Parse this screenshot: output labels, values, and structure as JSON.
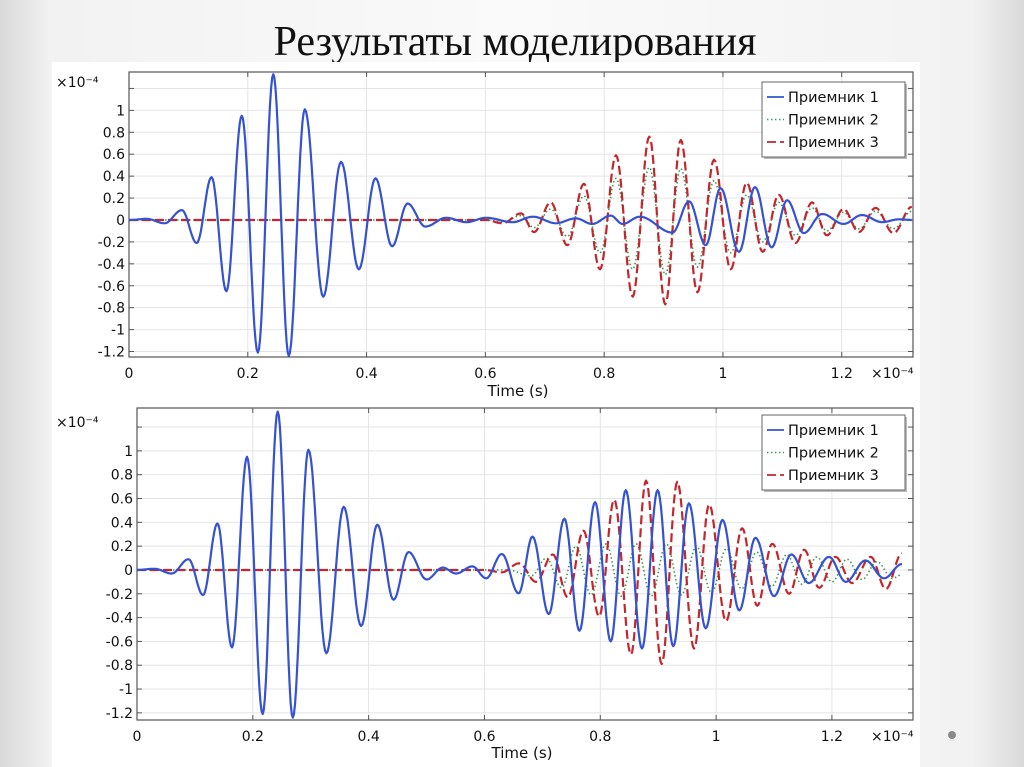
{
  "slide": {
    "title": "Результаты моделирования"
  },
  "colors": {
    "series1": "#3452d1",
    "series2": "#3f9a55",
    "series3": "#c3262c",
    "grid": "#e4e4e4"
  },
  "chart_data": [
    {
      "type": "line",
      "title": "",
      "xlabel": "Time (s)",
      "ylabel": "",
      "x_multiplier": "×10⁻⁴",
      "y_multiplier": "×10⁻⁴",
      "xlim": [
        0,
        1.32
      ],
      "ylim": [
        -1.25,
        1.35
      ],
      "x_ticks": [
        "0",
        "0.2",
        "0.4",
        "0.6",
        "0.8",
        "1",
        "1.2"
      ],
      "y_ticks": [
        "-1.2",
        "-1",
        "-0.8",
        "-0.6",
        "-0.4",
        "-0.2",
        "0",
        "0.2",
        "0.4",
        "0.6",
        "0.8",
        "1"
      ],
      "grid": true,
      "legend_position": "top-right",
      "series": [
        {
          "name": "Приемник 1",
          "style": "solid",
          "points": [
            [
              0,
              0
            ],
            [
              0.03,
              0.01
            ],
            [
              0.06,
              -0.03
            ],
            [
              0.089,
              0.09
            ],
            [
              0.114,
              -0.21
            ],
            [
              0.139,
              0.39
            ],
            [
              0.164,
              -0.65
            ],
            [
              0.19,
              0.95
            ],
            [
              0.217,
              -1.21
            ],
            [
              0.243,
              1.33
            ],
            [
              0.269,
              -1.24
            ],
            [
              0.296,
              1.01
            ],
            [
              0.327,
              -0.7
            ],
            [
              0.357,
              0.53
            ],
            [
              0.387,
              -0.45
            ],
            [
              0.415,
              0.38
            ],
            [
              0.443,
              -0.24
            ],
            [
              0.469,
              0.15
            ],
            [
              0.499,
              -0.06
            ],
            [
              0.534,
              0.02
            ],
            [
              0.568,
              -0.02
            ],
            [
              0.601,
              0.02
            ],
            [
              0.646,
              -0.02
            ],
            [
              0.68,
              0.03
            ],
            [
              0.719,
              -0.03
            ],
            [
              0.752,
              0.015
            ],
            [
              0.78,
              -0.036
            ],
            [
              0.811,
              0.04
            ],
            [
              0.831,
              -0.036
            ],
            [
              0.86,
              0.03
            ],
            [
              0.915,
              -0.115
            ],
            [
              0.943,
              0.17
            ],
            [
              0.971,
              -0.23
            ],
            [
              0.996,
              0.29
            ],
            [
              1.027,
              -0.29
            ],
            [
              1.054,
              0.3
            ],
            [
              1.082,
              -0.25
            ],
            [
              1.108,
              0.18
            ],
            [
              1.136,
              -0.12
            ],
            [
              1.167,
              0.055
            ],
            [
              1.203,
              -0.036
            ],
            [
              1.234,
              0.045
            ],
            [
              1.268,
              -0.02
            ],
            [
              1.296,
              0.006
            ],
            [
              1.318,
              0
            ]
          ]
        },
        {
          "name": "Приемник 2",
          "style": "dotted",
          "points": [
            [
              0,
              0
            ],
            [
              0.6,
              0
            ],
            [
              0.629,
              -0.02
            ],
            [
              0.66,
              0.04
            ],
            [
              0.682,
              -0.07
            ],
            [
              0.71,
              0.1
            ],
            [
              0.738,
              -0.15
            ],
            [
              0.766,
              0.22
            ],
            [
              0.793,
              -0.3
            ],
            [
              0.82,
              0.38
            ],
            [
              0.848,
              -0.45
            ],
            [
              0.876,
              0.48
            ],
            [
              0.903,
              -0.5
            ],
            [
              0.929,
              0.47
            ],
            [
              0.957,
              -0.43
            ],
            [
              0.985,
              0.36
            ],
            [
              1.013,
              -0.3
            ],
            [
              1.04,
              0.23
            ],
            [
              1.067,
              -0.2
            ],
            [
              1.094,
              0.16
            ],
            [
              1.122,
              -0.14
            ],
            [
              1.15,
              0.11
            ],
            [
              1.175,
              -0.1
            ],
            [
              1.203,
              0.07
            ],
            [
              1.229,
              -0.08
            ],
            [
              1.257,
              0.08
            ],
            [
              1.287,
              -0.08
            ],
            [
              1.318,
              0.08
            ]
          ]
        },
        {
          "name": "Приемник 3",
          "style": "dashed",
          "points": [
            [
              0,
              0
            ],
            [
              0.6,
              0
            ],
            [
              0.629,
              -0.03
            ],
            [
              0.66,
              0.06
            ],
            [
              0.682,
              -0.11
            ],
            [
              0.71,
              0.16
            ],
            [
              0.738,
              -0.23
            ],
            [
              0.766,
              0.33
            ],
            [
              0.793,
              -0.45
            ],
            [
              0.82,
              0.59
            ],
            [
              0.848,
              -0.7
            ],
            [
              0.876,
              0.76
            ],
            [
              0.903,
              -0.77
            ],
            [
              0.929,
              0.73
            ],
            [
              0.957,
              -0.66
            ],
            [
              0.985,
              0.55
            ],
            [
              1.013,
              -0.45
            ],
            [
              1.04,
              0.34
            ],
            [
              1.067,
              -0.29
            ],
            [
              1.094,
              0.23
            ],
            [
              1.122,
              -0.21
            ],
            [
              1.15,
              0.16
            ],
            [
              1.175,
              -0.14
            ],
            [
              1.203,
              0.1
            ],
            [
              1.229,
              -0.11
            ],
            [
              1.257,
              0.11
            ],
            [
              1.287,
              -0.12
            ],
            [
              1.318,
              0.12
            ]
          ]
        }
      ]
    },
    {
      "type": "line",
      "title": "",
      "xlabel": "Time (s)",
      "ylabel": "",
      "x_multiplier": "×10⁻⁴",
      "y_multiplier": "×10⁻⁴",
      "xlim": [
        0,
        1.34
      ],
      "ylim": [
        -1.26,
        1.36
      ],
      "x_ticks": [
        "0",
        "0.2",
        "0.4",
        "0.6",
        "0.8",
        "1",
        "1.2"
      ],
      "y_ticks": [
        "-1.2",
        "-1",
        "-0.8",
        "-0.6",
        "-0.4",
        "-0.2",
        "0",
        "0.2",
        "0.4",
        "0.6",
        "0.8",
        "1"
      ],
      "grid": true,
      "legend_position": "top-right",
      "series": [
        {
          "name": "Приемник 1",
          "style": "solid",
          "points": [
            [
              0,
              0
            ],
            [
              0.03,
              0.01
            ],
            [
              0.06,
              -0.03
            ],
            [
              0.089,
              0.09
            ],
            [
              0.114,
              -0.21
            ],
            [
              0.139,
              0.39
            ],
            [
              0.164,
              -0.65
            ],
            [
              0.19,
              0.95
            ],
            [
              0.217,
              -1.21
            ],
            [
              0.243,
              1.33
            ],
            [
              0.269,
              -1.24
            ],
            [
              0.296,
              1.01
            ],
            [
              0.327,
              -0.7
            ],
            [
              0.357,
              0.53
            ],
            [
              0.387,
              -0.47
            ],
            [
              0.415,
              0.38
            ],
            [
              0.443,
              -0.25
            ],
            [
              0.469,
              0.15
            ],
            [
              0.5,
              -0.08
            ],
            [
              0.528,
              0.02
            ],
            [
              0.551,
              -0.03
            ],
            [
              0.579,
              0.03
            ],
            [
              0.603,
              -0.07
            ],
            [
              0.63,
              0.134
            ],
            [
              0.659,
              -0.196
            ],
            [
              0.683,
              0.28
            ],
            [
              0.711,
              -0.37
            ],
            [
              0.738,
              0.43
            ],
            [
              0.764,
              -0.51
            ],
            [
              0.791,
              0.57
            ],
            [
              0.818,
              -0.6
            ],
            [
              0.844,
              0.67
            ],
            [
              0.872,
              -0.66
            ],
            [
              0.899,
              0.67
            ],
            [
              0.926,
              -0.64
            ],
            [
              0.953,
              0.56
            ],
            [
              0.982,
              -0.49
            ],
            [
              1.011,
              0.42
            ],
            [
              1.04,
              -0.34
            ],
            [
              1.068,
              0.27
            ],
            [
              1.1,
              -0.22
            ],
            [
              1.13,
              0.13
            ],
            [
              1.16,
              -0.11
            ],
            [
              1.195,
              0.11
            ],
            [
              1.224,
              -0.1
            ],
            [
              1.258,
              0.08
            ],
            [
              1.29,
              -0.07
            ],
            [
              1.321,
              0.05
            ]
          ]
        },
        {
          "name": "Приемник 2",
          "style": "dotted",
          "points": [
            [
              0,
              0
            ],
            [
              0.64,
              0
            ],
            [
              0.681,
              -0.05
            ],
            [
              0.707,
              0.1
            ],
            [
              0.733,
              -0.15
            ],
            [
              0.758,
              0.2
            ],
            [
              0.784,
              -0.21
            ],
            [
              0.81,
              0.22
            ],
            [
              0.836,
              -0.22
            ],
            [
              0.862,
              0.22
            ],
            [
              0.888,
              -0.22
            ],
            [
              0.914,
              0.22
            ],
            [
              0.94,
              -0.21
            ],
            [
              0.966,
              0.2
            ],
            [
              0.992,
              -0.19
            ],
            [
              1.018,
              0.18
            ],
            [
              1.044,
              -0.16
            ],
            [
              1.07,
              0.15
            ],
            [
              1.096,
              -0.14
            ],
            [
              1.122,
              0.13
            ],
            [
              1.148,
              -0.12
            ],
            [
              1.174,
              0.11
            ],
            [
              1.2,
              -0.1
            ],
            [
              1.226,
              0.09
            ],
            [
              1.252,
              -0.08
            ],
            [
              1.278,
              0.07
            ],
            [
              1.304,
              -0.07
            ],
            [
              1.321,
              -0.04
            ]
          ]
        },
        {
          "name": "Приемник 3",
          "style": "dashed",
          "points": [
            [
              0,
              0
            ],
            [
              0.6,
              0
            ],
            [
              0.63,
              -0.02
            ],
            [
              0.66,
              0.056
            ],
            [
              0.689,
              -0.1
            ],
            [
              0.718,
              0.13
            ],
            [
              0.744,
              -0.23
            ],
            [
              0.771,
              0.33
            ],
            [
              0.798,
              -0.39
            ],
            [
              0.824,
              0.59
            ],
            [
              0.853,
              -0.71
            ],
            [
              0.879,
              0.75
            ],
            [
              0.906,
              -0.79
            ],
            [
              0.933,
              0.74
            ],
            [
              0.962,
              -0.66
            ],
            [
              0.988,
              0.55
            ],
            [
              1.017,
              -0.43
            ],
            [
              1.045,
              0.35
            ],
            [
              1.071,
              -0.3
            ],
            [
              1.097,
              0.22
            ],
            [
              1.126,
              -0.2
            ],
            [
              1.152,
              0.17
            ],
            [
              1.178,
              -0.15
            ],
            [
              1.206,
              0.11
            ],
            [
              1.235,
              -0.11
            ],
            [
              1.267,
              0.11
            ],
            [
              1.293,
              -0.16
            ],
            [
              1.321,
              0.14
            ]
          ]
        }
      ]
    }
  ]
}
